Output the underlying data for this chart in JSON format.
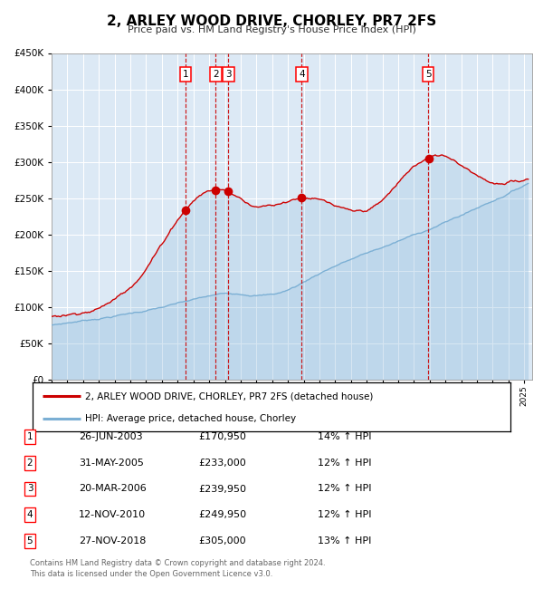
{
  "title": "2, ARLEY WOOD DRIVE, CHORLEY, PR7 2FS",
  "subtitle": "Price paid vs. HM Land Registry's House Price Index (HPI)",
  "bg_color": "#dce9f5",
  "hpi_color": "#7bafd4",
  "price_color": "#cc0000",
  "sales": [
    {
      "num": 1,
      "date": 2003.49,
      "price": 170950
    },
    {
      "num": 2,
      "date": 2005.42,
      "price": 233000
    },
    {
      "num": 3,
      "date": 2006.22,
      "price": 239950
    },
    {
      "num": 4,
      "date": 2010.87,
      "price": 249950
    },
    {
      "num": 5,
      "date": 2018.9,
      "price": 305000
    }
  ],
  "legend_entries": [
    "2, ARLEY WOOD DRIVE, CHORLEY, PR7 2FS (detached house)",
    "HPI: Average price, detached house, Chorley"
  ],
  "table_rows": [
    [
      "1",
      "26-JUN-2003",
      "£170,950",
      "14% ↑ HPI"
    ],
    [
      "2",
      "31-MAY-2005",
      "£233,000",
      "12% ↑ HPI"
    ],
    [
      "3",
      "20-MAR-2006",
      "£239,950",
      "12% ↑ HPI"
    ],
    [
      "4",
      "12-NOV-2010",
      "£249,950",
      "12% ↑ HPI"
    ],
    [
      "5",
      "27-NOV-2018",
      "£305,000",
      "13% ↑ HPI"
    ]
  ],
  "footer": "Contains HM Land Registry data © Crown copyright and database right 2024.\nThis data is licensed under the Open Government Licence v3.0.",
  "ylim": [
    0,
    450000
  ],
  "xmin": 1995.0,
  "xmax": 2025.5
}
